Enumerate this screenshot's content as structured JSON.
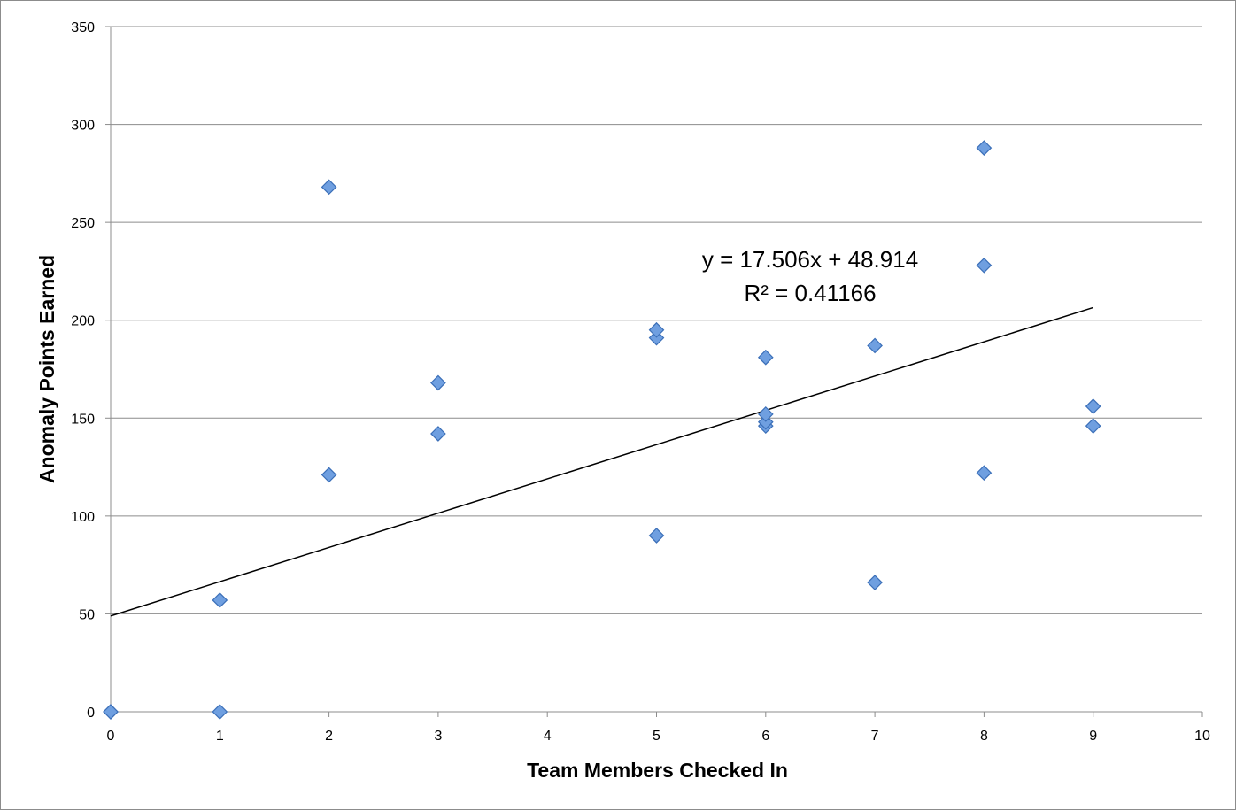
{
  "chart_data": {
    "type": "scatter",
    "title": "",
    "xlabel": "Team Members Checked In",
    "ylabel": "Anomaly Points Earned",
    "xlim": [
      0,
      10
    ],
    "ylim": [
      0,
      350
    ],
    "x_ticks": [
      "0",
      "1",
      "2",
      "3",
      "4",
      "5",
      "6",
      "7",
      "8",
      "9",
      "10"
    ],
    "y_ticks": [
      "0",
      "50",
      "100",
      "150",
      "200",
      "250",
      "300",
      "350"
    ],
    "grid": "horizontal",
    "legend": "none",
    "marker_color": "#6f9fe0",
    "marker_edge": "#3b6fb8",
    "series": [
      {
        "x": [
          0,
          0,
          1,
          1,
          2,
          2,
          3,
          3,
          5,
          5,
          5,
          6,
          6,
          6,
          6,
          7,
          7,
          8,
          8,
          8,
          9,
          9
        ],
        "y": [
          0,
          0,
          0,
          57,
          121,
          268,
          142,
          168,
          90,
          191,
          195,
          146,
          148,
          152,
          181,
          66,
          187,
          122,
          228,
          288,
          146,
          156
        ]
      }
    ],
    "trendline": {
      "slope": 17.506,
      "intercept": 48.914,
      "x_range": [
        0,
        9
      ],
      "equation": "y = 17.506x + 48.914",
      "r_squared": "R² = 0.41166"
    }
  }
}
